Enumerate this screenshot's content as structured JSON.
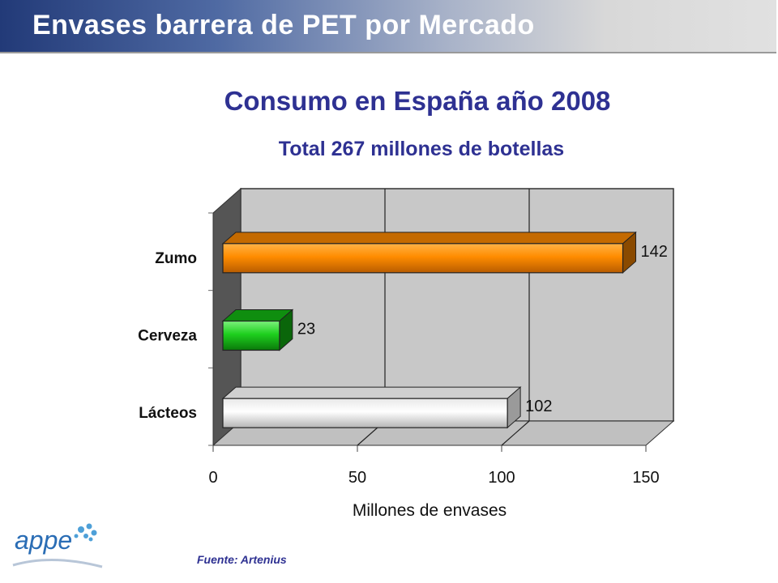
{
  "header": {
    "title": "Envases barrera de PET por Mercado"
  },
  "chart_data": {
    "type": "bar",
    "orientation": "horizontal",
    "title": "Consumo en España año 2008",
    "subtitle": "Total 267 millones de botellas",
    "categories": [
      "Zumo",
      "Cerveza",
      "Lácteos"
    ],
    "values": [
      142,
      23,
      102
    ],
    "value_labels": [
      "142",
      "23",
      "102"
    ],
    "xlabel": "Millones de envases",
    "ylabel": "",
    "xlim": [
      0,
      150
    ],
    "xticks": [
      "0",
      "50",
      "100",
      "150"
    ],
    "grid": true,
    "colors": {
      "Zumo": "#ff8c00",
      "Cerveza": "#22d022",
      "Lácteos": "#ffffff",
      "wall": "#c8c8c8",
      "side_wall": "#555555",
      "floor": "#c0c0c0"
    }
  },
  "footer": {
    "source": "Fuente: Artenius",
    "logo_text": "appe"
  }
}
